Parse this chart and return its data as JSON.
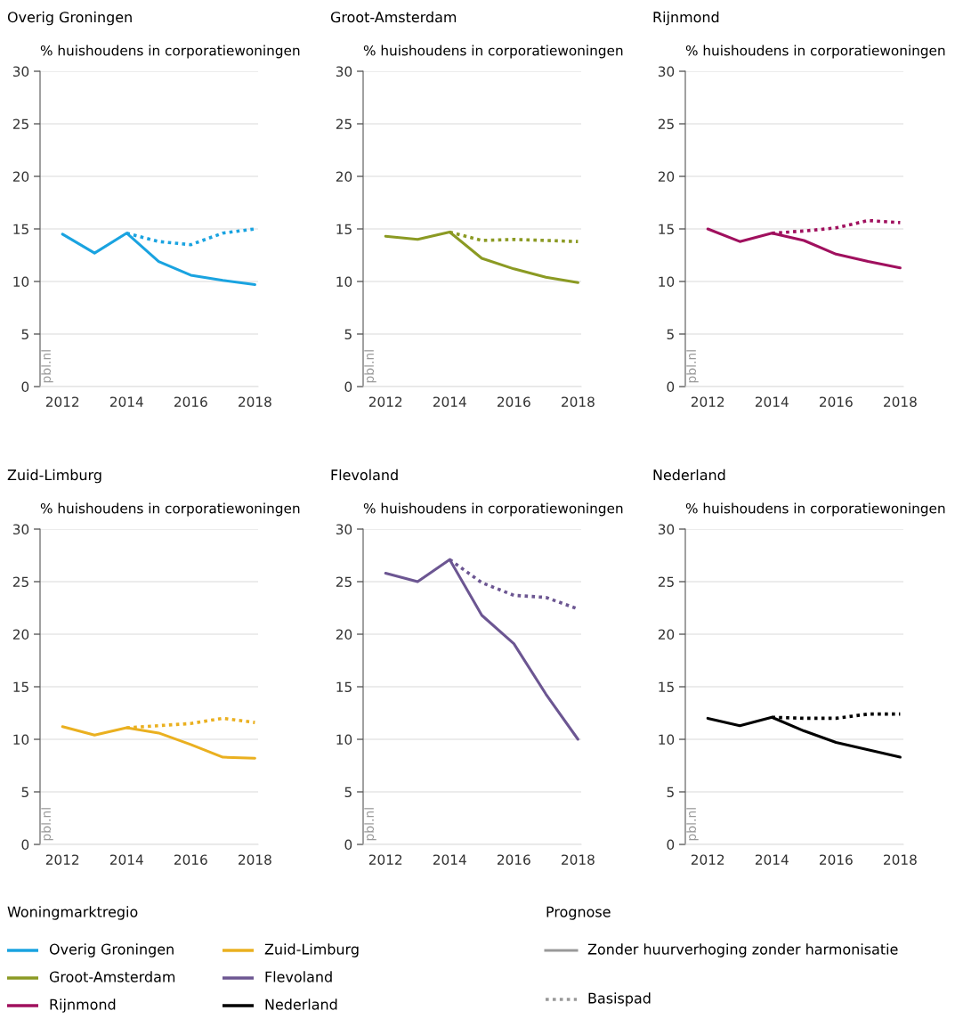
{
  "chart_data": [
    {
      "type": "line",
      "title": "Overig Groningen",
      "ylabel": "% huishoudens in corporatiewoningen",
      "x": [
        2012,
        2013,
        2014,
        2015,
        2016,
        2017,
        2018
      ],
      "xlim": [
        2011.3,
        2018.1
      ],
      "xticks": [
        2012,
        2014,
        2016,
        2018
      ],
      "ylim": [
        0,
        30
      ],
      "yticks": [
        0,
        5,
        10,
        15,
        20,
        25,
        30
      ],
      "grid": "y",
      "annotations": [
        "pbl.nl"
      ],
      "series": [
        {
          "color": "#1aa3e0",
          "line_style": "solid",
          "values": [
            14.5,
            12.7,
            14.6,
            11.9,
            10.6,
            10.1,
            9.7
          ]
        },
        {
          "color": "#1aa3e0",
          "line_style": "dotted",
          "values": [
            null,
            null,
            14.6,
            13.8,
            13.5,
            14.6,
            15.0
          ]
        }
      ]
    },
    {
      "type": "line",
      "title": "Groot-Amsterdam",
      "ylabel": "% huishoudens in corporatiewoningen",
      "x": [
        2012,
        2013,
        2014,
        2015,
        2016,
        2017,
        2018
      ],
      "xlim": [
        2011.3,
        2018.1
      ],
      "xticks": [
        2012,
        2014,
        2016,
        2018
      ],
      "ylim": [
        0,
        30
      ],
      "yticks": [
        0,
        5,
        10,
        15,
        20,
        25,
        30
      ],
      "grid": "y",
      "annotations": [
        "pbl.nl"
      ],
      "series": [
        {
          "color": "#8b9a23",
          "line_style": "solid",
          "values": [
            14.3,
            14.0,
            14.7,
            12.2,
            11.2,
            10.4,
            9.9
          ]
        },
        {
          "color": "#8b9a23",
          "line_style": "dotted",
          "values": [
            null,
            null,
            14.7,
            13.9,
            14.0,
            13.9,
            13.8
          ]
        }
      ]
    },
    {
      "type": "line",
      "title": "Rijnmond",
      "ylabel": "% huishoudens in corporatiewoningen",
      "x": [
        2012,
        2013,
        2014,
        2015,
        2016,
        2017,
        2018
      ],
      "xlim": [
        2011.3,
        2018.1
      ],
      "xticks": [
        2012,
        2014,
        2016,
        2018
      ],
      "ylim": [
        0,
        30
      ],
      "yticks": [
        0,
        5,
        10,
        15,
        20,
        25,
        30
      ],
      "grid": "y",
      "annotations": [
        "pbl.nl"
      ],
      "series": [
        {
          "color": "#a0105e",
          "line_style": "solid",
          "values": [
            15.0,
            13.8,
            14.6,
            13.9,
            12.6,
            11.9,
            11.3
          ]
        },
        {
          "color": "#a0105e",
          "line_style": "dotted",
          "values": [
            null,
            null,
            14.6,
            14.8,
            15.1,
            15.8,
            15.6
          ]
        }
      ]
    },
    {
      "type": "line",
      "title": "Zuid-Limburg",
      "ylabel": "% huishoudens in corporatiewoningen",
      "x": [
        2012,
        2013,
        2014,
        2015,
        2016,
        2017,
        2018
      ],
      "xlim": [
        2011.3,
        2018.1
      ],
      "xticks": [
        2012,
        2014,
        2016,
        2018
      ],
      "ylim": [
        0,
        30
      ],
      "yticks": [
        0,
        5,
        10,
        15,
        20,
        25,
        30
      ],
      "grid": "y",
      "annotations": [
        "pbl.nl"
      ],
      "series": [
        {
          "color": "#eab020",
          "line_style": "solid",
          "values": [
            11.2,
            10.4,
            11.1,
            10.6,
            9.5,
            8.3,
            8.2
          ]
        },
        {
          "color": "#eab020",
          "line_style": "dotted",
          "values": [
            null,
            null,
            11.1,
            11.3,
            11.5,
            12.0,
            11.6
          ]
        }
      ]
    },
    {
      "type": "line",
      "title": "Flevoland",
      "ylabel": "% huishoudens in corporatiewoningen",
      "x": [
        2012,
        2013,
        2014,
        2015,
        2016,
        2017,
        2018
      ],
      "xlim": [
        2011.3,
        2018.1
      ],
      "xticks": [
        2012,
        2014,
        2016,
        2018
      ],
      "ylim": [
        0,
        30
      ],
      "yticks": [
        0,
        5,
        10,
        15,
        20,
        25,
        30
      ],
      "grid": "y",
      "annotations": [
        "pbl.nl"
      ],
      "series": [
        {
          "color": "#6c5692",
          "line_style": "solid",
          "values": [
            25.8,
            25.0,
            27.1,
            21.8,
            19.1,
            14.3,
            10.0
          ]
        },
        {
          "color": "#6c5692",
          "line_style": "dotted",
          "values": [
            null,
            null,
            27.1,
            24.9,
            23.7,
            23.5,
            22.4
          ]
        }
      ]
    },
    {
      "type": "line",
      "title": "Nederland",
      "ylabel": "% huishoudens in corporatiewoningen",
      "x": [
        2012,
        2013,
        2014,
        2015,
        2016,
        2017,
        2018
      ],
      "xlim": [
        2011.3,
        2018.1
      ],
      "xticks": [
        2012,
        2014,
        2016,
        2018
      ],
      "ylim": [
        0,
        30
      ],
      "yticks": [
        0,
        5,
        10,
        15,
        20,
        25,
        30
      ],
      "grid": "y",
      "annotations": [
        "pbl.nl"
      ],
      "series": [
        {
          "color": "#000000",
          "line_style": "solid",
          "values": [
            12.0,
            11.3,
            12.1,
            10.8,
            9.7,
            9.0,
            8.3
          ]
        },
        {
          "color": "#000000",
          "line_style": "dotted",
          "values": [
            null,
            null,
            12.1,
            12.0,
            12.0,
            12.4,
            12.4
          ]
        }
      ]
    },
    {
      "type": "other",
      "title": "Woningmarktregio",
      "legend_title": "Prognose",
      "series": [
        {
          "name": "Overig Groningen",
          "color": "#1aa3e0"
        },
        {
          "name": "Groot-Amsterdam",
          "color": "#8b9a23"
        },
        {
          "name": "Rijnmond",
          "color": "#a0105e"
        },
        {
          "name": "Zuid-Limburg",
          "color": "#eab020"
        },
        {
          "name": "Flevoland",
          "color": "#6c5692"
        },
        {
          "name": "Nederland",
          "color": "#000000"
        },
        {
          "name": "Zonder huurverhoging zonder harmonisatie",
          "color": "#999999",
          "line_style": "solid"
        },
        {
          "name": "Basispad",
          "color": "#999999",
          "line_style": "dotted"
        }
      ]
    }
  ]
}
